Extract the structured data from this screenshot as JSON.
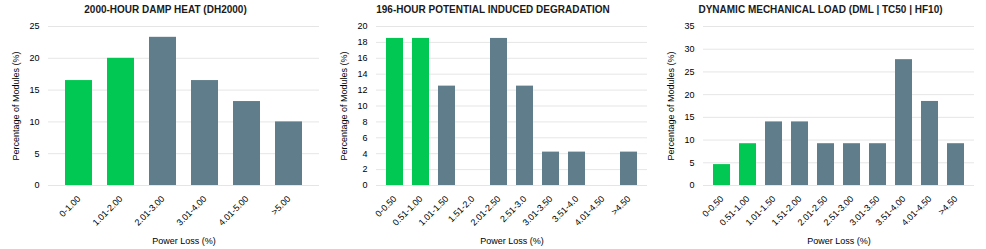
{
  "chart_data": [
    {
      "type": "bar",
      "title": "2000-HOUR DAMP HEAT (DH2000)",
      "x_label": "Power Loss (%)",
      "y_label": "Percentage of Modules (%)",
      "categories": [
        "0-1.00",
        "1.01-2.00",
        "2.01-3.00",
        "3.01-4.00",
        "4.01-5.00",
        ">5.00"
      ],
      "values": [
        16.5,
        20.0,
        23.3,
        16.5,
        13.2,
        10.0
      ],
      "colors": [
        "#00c853",
        "#00c853",
        "#607d8b",
        "#607d8b",
        "#607d8b",
        "#607d8b"
      ],
      "ylim": [
        0,
        25
      ],
      "yticks": [
        0,
        5,
        10,
        15,
        20,
        25
      ],
      "grid": true
    },
    {
      "type": "bar",
      "title": "196-HOUR POTENTIAL INDUCED DEGRADATION",
      "x_label": "Power Loss (%)",
      "y_label": "Percentage of Modules (%)",
      "categories": [
        "0-0.50",
        "0.51-1.00",
        "1.01-1.50",
        "1.51-2.0",
        "2.01-2.50",
        "2.51-3.0",
        "3.01-3.50",
        "3.51-4.0",
        "4.01-4.50",
        ">4.50"
      ],
      "values": [
        18.5,
        18.5,
        12.5,
        0.0,
        18.5,
        12.5,
        4.2,
        4.2,
        0.0,
        4.2
      ],
      "colors": [
        "#00c853",
        "#00c853",
        "#607d8b",
        "#607d8b",
        "#607d8b",
        "#607d8b",
        "#607d8b",
        "#607d8b",
        "#607d8b",
        "#607d8b"
      ],
      "ylim": [
        0,
        20
      ],
      "yticks": [
        0,
        2,
        4,
        6,
        8,
        10,
        12,
        14,
        16,
        18,
        20
      ],
      "grid": true
    },
    {
      "type": "bar",
      "title": "DYNAMIC MECHANICAL LOAD (DML | TC50 | HF10)",
      "x_label": "Power Loss (%)",
      "y_label": "Percentage of Modules (%)",
      "categories": [
        "0-0.50",
        "0.51-1.00",
        "1.01-1.50",
        "1.51-2.00",
        "2.01-2.50",
        "2.51-3.00",
        "3.01-3.50",
        "3.51-4.00",
        "4.01-4.50",
        ">4.50"
      ],
      "values": [
        4.6,
        9.2,
        14.0,
        14.0,
        9.2,
        9.2,
        9.2,
        27.7,
        18.5,
        9.2
      ],
      "colors": [
        "#00c853",
        "#00c853",
        "#607d8b",
        "#607d8b",
        "#607d8b",
        "#607d8b",
        "#607d8b",
        "#607d8b",
        "#607d8b",
        "#607d8b"
      ],
      "ylim": [
        0,
        35
      ],
      "yticks": [
        0,
        5,
        10,
        15,
        20,
        25,
        30,
        35
      ],
      "grid": true
    }
  ]
}
